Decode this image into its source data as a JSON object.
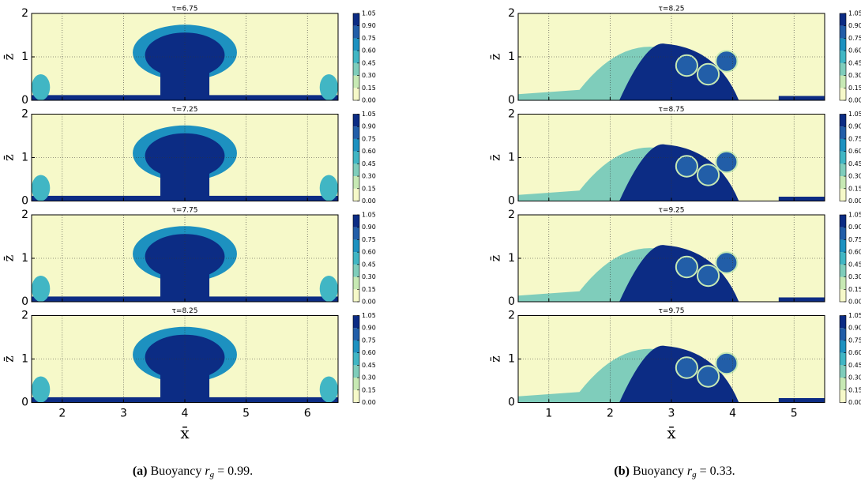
{
  "colormap": [
    "#f6f9c9",
    "#c7e9b4",
    "#7fcdbb",
    "#41b6c4",
    "#1d91c0",
    "#225ea8",
    "#0c2c84"
  ],
  "chart_data": [
    {
      "type": "contour",
      "title": "τ=6.75",
      "ylabel": "z̄",
      "xlim": [
        1.5,
        6.5
      ],
      "ylim": [
        0,
        2
      ],
      "xticks": [
        2,
        3,
        4,
        5,
        6
      ],
      "yticks": [
        0,
        1,
        2
      ],
      "grid": true,
      "colorbar_ticks": [
        {
          "value": 0,
          "label": "0.00"
        },
        {
          "value": 0.15,
          "label": "0.15"
        },
        {
          "value": 0.3,
          "label": "0.30"
        },
        {
          "value": 0.45,
          "label": "0.45"
        },
        {
          "value": 0.6,
          "label": "0.60"
        },
        {
          "value": 0.75,
          "label": "0.75"
        },
        {
          "value": 0.9,
          "label": "0.90"
        },
        {
          "value": 1.05,
          "label": "1.05"
        }
      ]
    },
    {
      "type": "contour",
      "title": "τ=7.25",
      "ylabel": "z̄",
      "xlim": [
        1.5,
        6.5
      ],
      "ylim": [
        0,
        2
      ],
      "xticks": [
        2,
        3,
        4,
        5,
        6
      ],
      "yticks": [
        0,
        1,
        2
      ],
      "grid": true,
      "colorbar_ticks": [
        {
          "value": 0,
          "label": "0.00"
        },
        {
          "value": 0.15,
          "label": "0.15"
        },
        {
          "value": 0.3,
          "label": "0.30"
        },
        {
          "value": 0.45,
          "label": "0.45"
        },
        {
          "value": 0.6,
          "label": "0.60"
        },
        {
          "value": 0.75,
          "label": "0.75"
        },
        {
          "value": 0.9,
          "label": "0.90"
        },
        {
          "value": 1.05,
          "label": "1.05"
        }
      ]
    },
    {
      "type": "contour",
      "title": "τ=7.75",
      "ylabel": "z̄",
      "xlim": [
        1.5,
        6.5
      ],
      "ylim": [
        0,
        2
      ],
      "xticks": [
        2,
        3,
        4,
        5,
        6
      ],
      "yticks": [
        0,
        1,
        2
      ],
      "grid": true,
      "colorbar_ticks": [
        {
          "value": 0,
          "label": "0.00"
        },
        {
          "value": 0.15,
          "label": "0.15"
        },
        {
          "value": 0.3,
          "label": "0.30"
        },
        {
          "value": 0.45,
          "label": "0.45"
        },
        {
          "value": 0.6,
          "label": "0.60"
        },
        {
          "value": 0.75,
          "label": "0.75"
        },
        {
          "value": 0.9,
          "label": "0.90"
        },
        {
          "value": 1.05,
          "label": "1.05"
        }
      ]
    },
    {
      "type": "contour",
      "title": "τ=8.25",
      "ylabel": "z̄",
      "xlabel": "x̄",
      "xlim": [
        1.5,
        6.5
      ],
      "ylim": [
        0,
        2
      ],
      "xticks": [
        2,
        3,
        4,
        5,
        6
      ],
      "yticks": [
        0,
        1,
        2
      ],
      "grid": true,
      "colorbar_ticks": [
        {
          "value": 0,
          "label": "0.00"
        },
        {
          "value": 0.15,
          "label": "0.15"
        },
        {
          "value": 0.3,
          "label": "0.30"
        },
        {
          "value": 0.45,
          "label": "0.45"
        },
        {
          "value": 0.6,
          "label": "0.60"
        },
        {
          "value": 0.75,
          "label": "0.75"
        },
        {
          "value": 0.9,
          "label": "0.90"
        },
        {
          "value": 1.05,
          "label": "1.05"
        }
      ]
    },
    {
      "type": "contour",
      "title": "τ=8.25",
      "ylabel": "z̄",
      "xlim": [
        0.5,
        5.5
      ],
      "ylim": [
        0,
        2
      ],
      "xticks": [
        1,
        2,
        3,
        4,
        5
      ],
      "yticks": [
        0,
        1,
        2
      ],
      "grid": true,
      "colorbar_ticks": [
        {
          "value": 0,
          "label": "0.00"
        },
        {
          "value": 0.15,
          "label": "0.15"
        },
        {
          "value": 0.3,
          "label": "0.30"
        },
        {
          "value": 0.45,
          "label": "0.45"
        },
        {
          "value": 0.6,
          "label": "0.60"
        },
        {
          "value": 0.75,
          "label": "0.75"
        },
        {
          "value": 0.9,
          "label": "0.90"
        },
        {
          "value": 1.05,
          "label": "1.05"
        }
      ]
    },
    {
      "type": "contour",
      "title": "τ=8.75",
      "ylabel": "z̄",
      "xlim": [
        0.5,
        5.5
      ],
      "ylim": [
        0,
        2
      ],
      "xticks": [
        1,
        2,
        3,
        4,
        5
      ],
      "yticks": [
        0,
        1,
        2
      ],
      "grid": true,
      "colorbar_ticks": [
        {
          "value": 0,
          "label": "0.00"
        },
        {
          "value": 0.15,
          "label": "0.15"
        },
        {
          "value": 0.3,
          "label": "0.30"
        },
        {
          "value": 0.45,
          "label": "0.45"
        },
        {
          "value": 0.6,
          "label": "0.60"
        },
        {
          "value": 0.75,
          "label": "0.75"
        },
        {
          "value": 0.9,
          "label": "0.90"
        },
        {
          "value": 1.05,
          "label": "1.05"
        }
      ]
    },
    {
      "type": "contour",
      "title": "τ=9.25",
      "ylabel": "z̄",
      "xlim": [
        0.5,
        5.5
      ],
      "ylim": [
        0,
        2
      ],
      "xticks": [
        1,
        2,
        3,
        4,
        5
      ],
      "yticks": [
        0,
        1,
        2
      ],
      "grid": true,
      "colorbar_ticks": [
        {
          "value": 0,
          "label": "0.00"
        },
        {
          "value": 0.15,
          "label": "0.15"
        },
        {
          "value": 0.3,
          "label": "0.30"
        },
        {
          "value": 0.45,
          "label": "0.45"
        },
        {
          "value": 0.6,
          "label": "0.60"
        },
        {
          "value": 0.75,
          "label": "0.75"
        },
        {
          "value": 0.9,
          "label": "0.90"
        },
        {
          "value": 1.05,
          "label": "1.05"
        }
      ]
    },
    {
      "type": "contour",
      "title": "τ=9.75",
      "ylabel": "z̄",
      "xlabel": "x̄",
      "xlim": [
        0.5,
        5.5
      ],
      "ylim": [
        0,
        2
      ],
      "xticks": [
        1,
        2,
        3,
        4,
        5
      ],
      "yticks": [
        0,
        1,
        2
      ],
      "grid": true,
      "colorbar_ticks": [
        {
          "value": 0,
          "label": "0.00"
        },
        {
          "value": 0.15,
          "label": "0.15"
        },
        {
          "value": 0.3,
          "label": "0.30"
        },
        {
          "value": 0.45,
          "label": "0.45"
        },
        {
          "value": 0.6,
          "label": "0.60"
        },
        {
          "value": 0.75,
          "label": "0.75"
        },
        {
          "value": 0.9,
          "label": "0.90"
        },
        {
          "value": 1.05,
          "label": "1.05"
        }
      ]
    }
  ],
  "captions": [
    {
      "label": "(a)",
      "text": "Buoyancy",
      "var": "r",
      "sub": "g",
      "rest": "= 0.99."
    },
    {
      "label": "(b)",
      "text": "Buoyancy",
      "var": "r",
      "sub": "g",
      "rest": "= 0.33."
    }
  ]
}
